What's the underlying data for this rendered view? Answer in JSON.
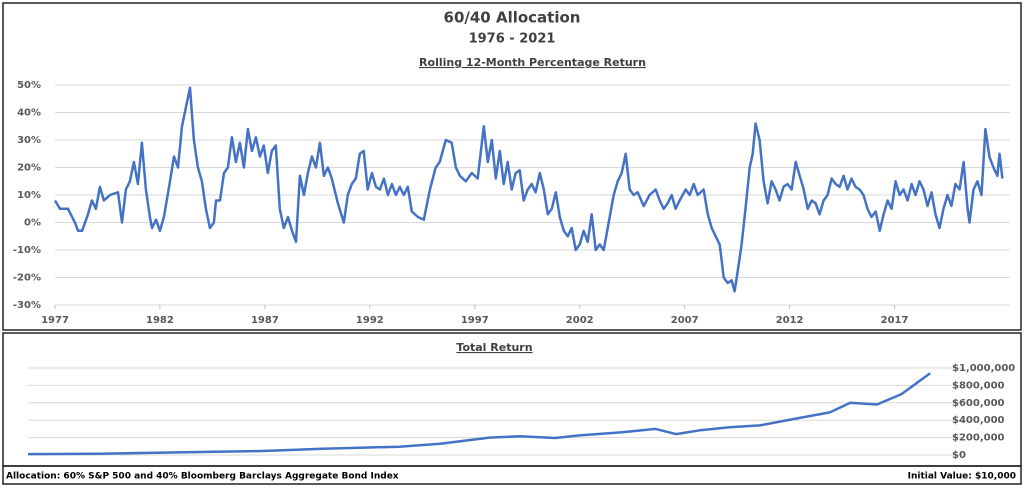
{
  "header": {
    "title": "60/40 Allocation",
    "subtitle": "1976 - 2021"
  },
  "footer": {
    "left": "Allocation: 60% S&P 500 and 40% Bloomberg Barclays Aggregate Bond Index",
    "right": "Initial Value: $10,000"
  },
  "chart_data": [
    {
      "type": "line",
      "title": "Rolling 12-Month Percentage Return",
      "color": "#4472c4",
      "grid": true,
      "xlim": [
        1977,
        2022.5
      ],
      "xticks": [
        1977,
        1982,
        1987,
        1992,
        1997,
        2002,
        2007,
        2012,
        2017
      ],
      "ylim": [
        -30,
        50
      ],
      "yticks": [
        {
          "value": -30,
          "label": "-30%"
        },
        {
          "value": -20,
          "label": "-20%"
        },
        {
          "value": -10,
          "label": "-10%"
        },
        {
          "value": 0,
          "label": "0%"
        },
        {
          "value": 10,
          "label": "10%"
        },
        {
          "value": 20,
          "label": "20%"
        },
        {
          "value": 30,
          "label": "30%"
        },
        {
          "value": 40,
          "label": "40%"
        },
        {
          "value": 50,
          "label": "50%"
        }
      ],
      "x": [
        1977.0,
        1977.24,
        1977.62,
        1977.95,
        1978.1,
        1978.29,
        1978.57,
        1978.76,
        1978.95,
        1979.14,
        1979.33,
        1979.62,
        1980.0,
        1980.19,
        1980.38,
        1980.57,
        1980.76,
        1980.95,
        1981.14,
        1981.33,
        1981.52,
        1981.62,
        1981.81,
        1982.0,
        1982.19,
        1982.48,
        1982.67,
        1982.86,
        1983.05,
        1983.24,
        1983.43,
        1983.62,
        1983.81,
        1984.0,
        1984.19,
        1984.38,
        1984.57,
        1984.67,
        1984.86,
        1985.05,
        1985.24,
        1985.43,
        1985.62,
        1985.81,
        1986.0,
        1986.19,
        1986.38,
        1986.57,
        1986.76,
        1986.95,
        1987.14,
        1987.33,
        1987.52,
        1987.71,
        1987.9,
        1988.1,
        1988.29,
        1988.48,
        1988.67,
        1988.86,
        1989.05,
        1989.24,
        1989.43,
        1989.62,
        1989.81,
        1990.0,
        1990.19,
        1990.48,
        1990.76,
        1990.95,
        1991.14,
        1991.33,
        1991.52,
        1991.71,
        1991.9,
        1992.1,
        1992.29,
        1992.48,
        1992.67,
        1992.86,
        1993.05,
        1993.24,
        1993.43,
        1993.62,
        1993.81,
        1994.0,
        1994.29,
        1994.57,
        1994.86,
        1995.14,
        1995.33,
        1995.62,
        1995.9,
        1996.1,
        1996.29,
        1996.57,
        1996.86,
        1997.14,
        1997.43,
        1997.62,
        1997.81,
        1998.0,
        1998.19,
        1998.38,
        1998.57,
        1998.76,
        1998.95,
        1999.14,
        1999.33,
        1999.52,
        1999.71,
        1999.9,
        2000.1,
        2000.29,
        2000.48,
        2000.67,
        2000.86,
        2001.05,
        2001.24,
        2001.43,
        2001.62,
        2001.81,
        2002.0,
        2002.19,
        2002.38,
        2002.57,
        2002.76,
        2002.95,
        2003.14,
        2003.43,
        2003.62,
        2003.81,
        2004.0,
        2004.19,
        2004.38,
        2004.57,
        2004.76,
        2005.05,
        2005.33,
        2005.62,
        2005.81,
        2006.0,
        2006.19,
        2006.38,
        2006.57,
        2006.76,
        2007.05,
        2007.24,
        2007.43,
        2007.62,
        2007.9,
        2008.1,
        2008.29,
        2008.48,
        2008.67,
        2008.86,
        2009.05,
        2009.24,
        2009.38,
        2009.52,
        2009.71,
        2009.9,
        2010.1,
        2010.24,
        2010.38,
        2010.57,
        2010.76,
        2010.95,
        2011.14,
        2011.33,
        2011.52,
        2011.71,
        2011.9,
        2012.1,
        2012.29,
        2012.48,
        2012.67,
        2012.86,
        2013.05,
        2013.24,
        2013.43,
        2013.62,
        2013.81,
        2014.0,
        2014.19,
        2014.38,
        2014.57,
        2014.76,
        2014.95,
        2015.14,
        2015.33,
        2015.52,
        2015.71,
        2015.9,
        2016.1,
        2016.29,
        2016.48,
        2016.67,
        2016.86,
        2017.05,
        2017.24,
        2017.43,
        2017.62,
        2017.81,
        2018.0,
        2018.19,
        2018.38,
        2018.57,
        2018.76,
        2018.95,
        2019.14,
        2019.33,
        2019.52,
        2019.71,
        2019.9,
        2020.1,
        2020.29,
        2020.48,
        2020.57,
        2020.76,
        2020.95,
        2021.14,
        2021.33,
        2021.52,
        2021.71,
        2021.9,
        2022.0,
        2022.14
      ],
      "values": [
        8,
        5,
        5,
        0,
        -3,
        -3,
        3,
        8,
        5,
        13,
        8,
        10,
        11,
        0,
        12,
        15,
        22,
        14,
        29,
        12,
        2,
        -2,
        1,
        -3,
        2,
        15,
        24,
        20,
        35,
        42,
        49,
        30,
        20,
        15,
        5,
        -2,
        0,
        8,
        8,
        18,
        20,
        31,
        22,
        29,
        20,
        34,
        26,
        31,
        24,
        28,
        18,
        26,
        28,
        5,
        -2,
        2,
        -3,
        -7,
        17,
        10,
        18,
        24,
        20,
        29,
        17,
        20,
        16,
        7,
        0,
        10,
        14,
        16,
        25,
        26,
        12,
        18,
        13,
        12,
        16,
        10,
        14,
        10,
        13,
        10,
        13,
        4,
        2,
        1,
        12,
        20,
        22,
        30,
        29,
        20,
        17,
        15,
        18,
        16,
        35,
        22,
        30,
        16,
        26,
        14,
        22,
        12,
        18,
        19,
        8,
        12,
        14,
        11,
        18,
        12,
        3,
        5,
        11,
        2,
        -3,
        -5,
        -2,
        -10,
        -8,
        -3,
        -7,
        3,
        -10,
        -8,
        -10,
        2,
        10,
        15,
        18,
        25,
        12,
        10,
        11,
        6,
        10,
        12,
        8,
        5,
        7,
        10,
        5,
        8,
        12,
        10,
        14,
        10,
        12,
        3,
        -2,
        -5,
        -8,
        -20,
        -22,
        -21,
        -25,
        -18,
        -8,
        5,
        20,
        25,
        36,
        30,
        15,
        7,
        15,
        12,
        8,
        13,
        14,
        12,
        22,
        17,
        12,
        5,
        8,
        7,
        3,
        8,
        10,
        16,
        14,
        13,
        17,
        12,
        16,
        13,
        12,
        10,
        5,
        2,
        4,
        -3,
        3,
        8,
        5,
        15,
        10,
        12,
        8,
        14,
        10,
        15,
        12,
        6,
        11,
        3,
        -2,
        5,
        10,
        6,
        14,
        12,
        22,
        5,
        0,
        12,
        15,
        10,
        34,
        24,
        20,
        17,
        25,
        16
      ]
    },
    {
      "type": "line",
      "title": "Total Return",
      "color": "#4472c4",
      "grid": true,
      "xlim": [
        1977,
        2022.5
      ],
      "ylim": [
        0,
        1000000
      ],
      "yticks": [
        {
          "value": 0,
          "label": "$0"
        },
        {
          "value": 200000,
          "label": "$200,000"
        },
        {
          "value": 400000,
          "label": "$400,000"
        },
        {
          "value": 600000,
          "label": "$600,000"
        },
        {
          "value": 800000,
          "label": "$800,000"
        },
        {
          "value": 1000000,
          "label": "$1,000,000"
        }
      ],
      "x": [
        1977.0,
        1980.5,
        1985.4,
        1988.3,
        1991.2,
        1995.1,
        1997.1,
        1999.5,
        2001.0,
        2002.7,
        2003.9,
        2005.9,
        2007.6,
        2008.6,
        2009.8,
        2011.2,
        2012.7,
        2014.7,
        2016.1,
        2017.1,
        2018.4,
        2019.6,
        2021.0
      ],
      "values": [
        10000,
        15000,
        35000,
        45000,
        70000,
        95000,
        130000,
        200000,
        215000,
        195000,
        225000,
        260000,
        300000,
        240000,
        285000,
        320000,
        340000,
        430000,
        490000,
        600000,
        580000,
        700000,
        940000
      ]
    }
  ]
}
